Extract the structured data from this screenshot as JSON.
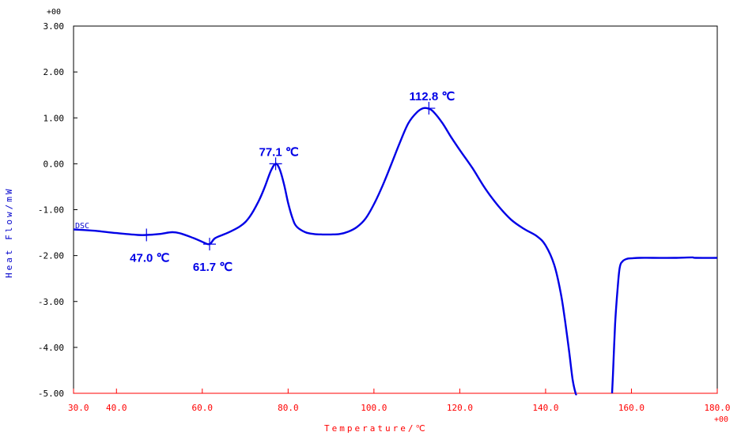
{
  "chart_data": {
    "type": "line",
    "title": "",
    "xlabel": "Temperature/℃",
    "ylabel": "Heat Flow/mW",
    "x_exponent_label": "+00",
    "y_exponent_label": "+00",
    "xlim": [
      30.0,
      180.0
    ],
    "ylim": [
      -5.0,
      3.0
    ],
    "x_ticks": [
      30,
      40,
      60,
      80,
      100,
      120,
      140,
      160,
      180
    ],
    "x_tick_labels": [
      "30.0",
      "40.0",
      "60.0",
      "80.0",
      "100.0",
      "120.0",
      "140.0",
      "160.0",
      "180.0"
    ],
    "y_ticks": [
      3,
      2,
      1,
      0,
      -1,
      -2,
      -3,
      -4,
      -5
    ],
    "y_tick_labels": [
      "3.00",
      "2.00",
      "1.00",
      "0.00",
      "-1.00",
      "-2.00",
      "-3.00",
      "-4.00",
      "-5.00"
    ],
    "grid": false,
    "series": [
      {
        "name": "DSC",
        "color": "#0000e6",
        "x": [
          30,
          35,
          40,
          45,
          47,
          50,
          53,
          55,
          58,
          60,
          61.7,
          63,
          66,
          69,
          71,
          73,
          74.5,
          76,
          77.1,
          78,
          79,
          80,
          81,
          82,
          84,
          86,
          88,
          90,
          92,
          94,
          96,
          98,
          100,
          102,
          104,
          106,
          108,
          110,
          111.5,
          112.8,
          114,
          116,
          118,
          120,
          123,
          126,
          129,
          132,
          135,
          138,
          140,
          142,
          143.5,
          144.5,
          145.5,
          146.3,
          147,
          147.2
        ],
        "y": [
          -1.43,
          -1.46,
          -1.51,
          -1.55,
          -1.55,
          -1.53,
          -1.49,
          -1.52,
          -1.62,
          -1.7,
          -1.75,
          -1.62,
          -1.5,
          -1.35,
          -1.16,
          -0.84,
          -0.52,
          -0.15,
          0.0,
          -0.11,
          -0.43,
          -0.85,
          -1.18,
          -1.37,
          -1.49,
          -1.53,
          -1.54,
          -1.54,
          -1.53,
          -1.48,
          -1.38,
          -1.2,
          -0.88,
          -0.48,
          -0.02,
          0.45,
          0.88,
          1.12,
          1.21,
          1.2,
          1.12,
          0.88,
          0.58,
          0.3,
          -0.1,
          -0.55,
          -0.92,
          -1.22,
          -1.42,
          -1.58,
          -1.78,
          -2.2,
          -2.8,
          -3.4,
          -4.1,
          -4.7,
          -5.0,
          -5.0
        ]
      },
      {
        "name": "",
        "color": "#0000e6",
        "x": [
          155.5,
          155.7,
          156.2,
          156.8,
          157.3,
          158,
          159,
          160,
          162,
          165,
          170,
          174,
          175,
          180
        ],
        "y": [
          -5.0,
          -4.6,
          -3.5,
          -2.7,
          -2.25,
          -2.12,
          -2.07,
          -2.06,
          -2.05,
          -2.05,
          -2.05,
          -2.04,
          -2.05,
          -2.05
        ]
      }
    ],
    "series_label": {
      "text": "DSC",
      "x": 30,
      "y": -1.43
    },
    "annotations": [
      {
        "text": "47.0 ℃",
        "x": 47.0,
        "y": -1.55,
        "position": "below"
      },
      {
        "text": "61.7 ℃",
        "x": 61.7,
        "y": -1.75,
        "position": "below"
      },
      {
        "text": "77.1 ℃",
        "x": 77.1,
        "y": 0.0,
        "position": "above"
      },
      {
        "text": "112.8 ℃",
        "x": 112.8,
        "y": 1.21,
        "position": "above"
      }
    ],
    "colors": {
      "curve": "#0000e6",
      "x_axis": "#ff0000",
      "x_text": "#ff0000",
      "y_axis": "#000000",
      "y_text": "#000000",
      "ylabel_text": "#0000cc"
    }
  }
}
